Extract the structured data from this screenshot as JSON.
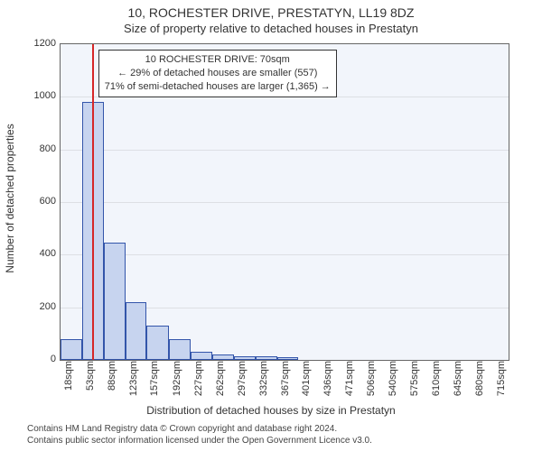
{
  "title": "10, ROCHESTER DRIVE, PRESTATYN, LL19 8DZ",
  "subtitle": "Size of property relative to detached houses in Prestatyn",
  "chart": {
    "type": "histogram",
    "plot_background_color": "#f2f5fb",
    "bar_fill_color": "#c7d4ef",
    "bar_border_color": "#3355aa",
    "reference_line_color": "#d62728",
    "reference_value_sqm": 70,
    "grid_color": "#666666",
    "ymax": 1200,
    "ytick_step": 200,
    "yticks": [
      0,
      200,
      400,
      600,
      800,
      1000,
      1200
    ],
    "x_bin_width_sqm": 35,
    "x_start_sqm": 18,
    "x_end_sqm": 740,
    "xticks": [
      18,
      53,
      88,
      123,
      157,
      192,
      227,
      262,
      297,
      332,
      367,
      401,
      436,
      471,
      506,
      540,
      575,
      610,
      645,
      680,
      715
    ],
    "values": [
      80,
      980,
      445,
      220,
      130,
      80,
      30,
      20,
      15,
      15,
      12,
      0,
      0,
      0,
      0,
      0,
      0,
      0,
      0,
      0
    ],
    "ylabel": "Number of detached properties",
    "xlabel": "Distribution of detached houses by size in Prestatyn"
  },
  "annotation": {
    "line1": "10 ROCHESTER DRIVE: 70sqm",
    "line2": "← 29% of detached houses are smaller (557)",
    "line3": "71% of semi-detached houses are larger (1,365) →"
  },
  "footnotes": {
    "line1": "Contains HM Land Registry data © Crown copyright and database right 2024.",
    "line2": "Contains public sector information licensed under the Open Government Licence v3.0."
  }
}
